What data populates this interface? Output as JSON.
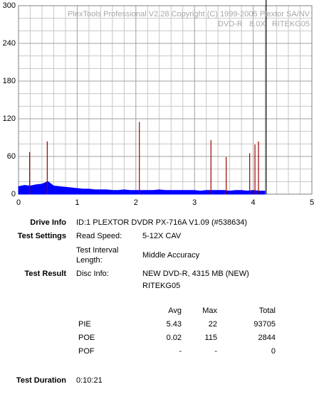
{
  "chart_data": {
    "type": "area",
    "watermark": [
      "PlexTools Professional V2.28 Copyright (C) 1999-2005 Plextor SA/NV",
      "DVD-R   8.0X   RITEKG05"
    ],
    "xlim": [
      0,
      5
    ],
    "xticks": [
      0,
      1,
      2,
      3,
      4,
      5
    ],
    "ylim": [
      0,
      300
    ],
    "yticks": [
      0,
      60,
      120,
      180,
      240,
      300
    ],
    "grid": true,
    "series": [
      {
        "name": "PIE",
        "color": "#0000ff",
        "x": [
          0,
          0.1,
          0.2,
          0.3,
          0.4,
          0.5,
          0.6,
          0.7,
          0.8,
          0.9,
          1,
          1.1,
          1.2,
          1.3,
          1.4,
          1.5,
          1.6,
          1.7,
          1.8,
          1.9,
          2,
          2.1,
          2.2,
          2.3,
          2.4,
          2.5,
          2.6,
          2.7,
          2.8,
          2.9,
          3,
          3.1,
          3.2,
          3.3,
          3.4,
          3.5,
          3.6,
          3.7,
          3.8,
          3.9,
          4,
          4.1,
          4.2
        ],
        "values": [
          12,
          14,
          13,
          15,
          16,
          20,
          13,
          12,
          11,
          10,
          9,
          8,
          8,
          7,
          7,
          7,
          6,
          6,
          7,
          6,
          6,
          6,
          6,
          6,
          7,
          6,
          6,
          6,
          6,
          6,
          6,
          5,
          6,
          6,
          6,
          6,
          5,
          6,
          6,
          5,
          6,
          5,
          5
        ]
      },
      {
        "name": "POE",
        "color": "#990000",
        "x": [
          0.19,
          0.49,
          2.06,
          3.28,
          3.54,
          3.94,
          4.03,
          4.09
        ],
        "values": [
          67,
          84,
          115,
          86,
          59,
          65,
          79,
          84
        ]
      }
    ],
    "disc_end": 4.22
  },
  "info": {
    "drive_info": {
      "label": "Drive Info",
      "value": "ID:1 PLEXTOR DVDR PX-716A V1.09 (#538634)"
    },
    "test_settings": {
      "label": "Test Settings",
      "read_speed_label": "Read Speed:",
      "read_speed": "5-12X CAV",
      "interval_label": [
        "Test Interval",
        "Length:"
      ],
      "interval": "Middle Accuracy"
    },
    "test_result": {
      "label": "Test Result",
      "disc_info_label": "Disc Info:",
      "disc_info": [
        "NEW DVD-R, 4315 MB (NEW)",
        "RITEKG05"
      ]
    },
    "stats": {
      "headers": [
        "Avg",
        "Max",
        "Total"
      ],
      "rows": [
        [
          "PIE",
          "5.43",
          "22",
          "93705"
        ],
        [
          "POE",
          "0.02",
          "115",
          "2844"
        ],
        [
          "POF",
          "-",
          "-",
          "0"
        ]
      ]
    },
    "test_duration": {
      "label": "Test Duration",
      "value": "0:10:21"
    }
  }
}
